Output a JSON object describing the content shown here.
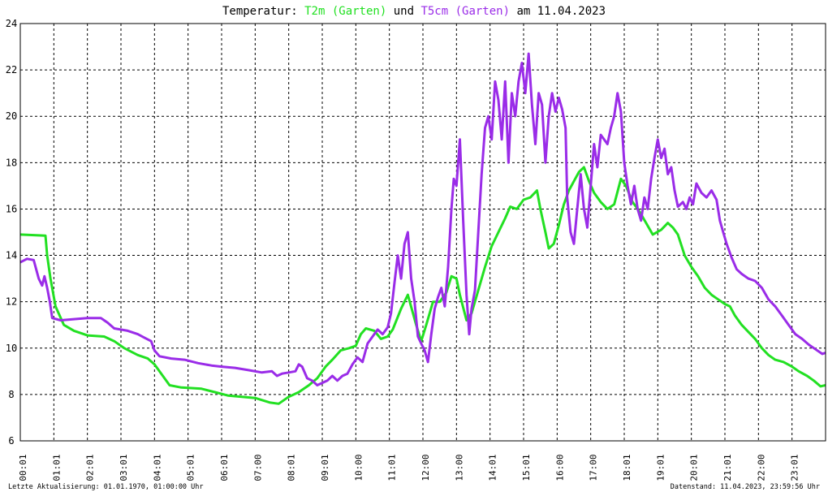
{
  "title": {
    "prefix": "Temperatur: ",
    "series1": "T2m (Garten)",
    "mid": " und ",
    "series2": "T5cm (Garten)",
    "suffix": " am 11.04.2023"
  },
  "footer": {
    "left": "Letzte Aktualisierung: 01.01.1970, 01:00:00 Uhr",
    "right": "Datenstand: 11.04.2023, 23:59:56 Uhr"
  },
  "colors": {
    "t2m": "#22e022",
    "t5cm": "#9a2ce8",
    "grid": "#000000",
    "text": "#000000"
  },
  "chart_data": {
    "type": "line",
    "title": "Temperatur: T2m (Garten) und T5cm (Garten) am 11.04.2023",
    "xlim": [
      0,
      24
    ],
    "ylim": [
      6,
      24
    ],
    "yticks": [
      6,
      8,
      10,
      12,
      14,
      16,
      18,
      20,
      22,
      24
    ],
    "xtick_labels": [
      "00:01",
      "01:01",
      "02:01",
      "03:01",
      "04:01",
      "05:01",
      "06:01",
      "07:00",
      "08:01",
      "09:01",
      "10:00",
      "11:01",
      "12:00",
      "13:00",
      "14:01",
      "15:01",
      "16:00",
      "17:00",
      "18:01",
      "19:01",
      "20:01",
      "21:01",
      "22:00",
      "23:01"
    ],
    "grid": true,
    "series": [
      {
        "name": "T2m (Garten)",
        "color": "#22e022",
        "points": [
          [
            0,
            14.9
          ],
          [
            0.75,
            14.85
          ],
          [
            0.8,
            14.0
          ],
          [
            0.9,
            13.0
          ],
          [
            1.05,
            11.8
          ],
          [
            1.3,
            11.0
          ],
          [
            1.6,
            10.75
          ],
          [
            2.0,
            10.55
          ],
          [
            2.5,
            10.5
          ],
          [
            2.8,
            10.3
          ],
          [
            3.1,
            10.0
          ],
          [
            3.5,
            9.7
          ],
          [
            3.8,
            9.55
          ],
          [
            4.0,
            9.3
          ],
          [
            4.2,
            8.9
          ],
          [
            4.45,
            8.4
          ],
          [
            4.8,
            8.3
          ],
          [
            5.4,
            8.25
          ],
          [
            5.8,
            8.1
          ],
          [
            6.2,
            7.95
          ],
          [
            6.6,
            7.9
          ],
          [
            7.0,
            7.85
          ],
          [
            7.45,
            7.65
          ],
          [
            7.7,
            7.6
          ],
          [
            8.0,
            7.9
          ],
          [
            8.3,
            8.1
          ],
          [
            8.6,
            8.4
          ],
          [
            8.85,
            8.7
          ],
          [
            9.1,
            9.2
          ],
          [
            9.3,
            9.5
          ],
          [
            9.55,
            9.9
          ],
          [
            9.8,
            10.0
          ],
          [
            10.0,
            10.1
          ],
          [
            10.15,
            10.6
          ],
          [
            10.3,
            10.85
          ],
          [
            10.55,
            10.75
          ],
          [
            10.75,
            10.4
          ],
          [
            10.95,
            10.5
          ],
          [
            11.1,
            10.8
          ],
          [
            11.35,
            11.7
          ],
          [
            11.55,
            12.3
          ],
          [
            11.8,
            11.0
          ],
          [
            11.95,
            10.3
          ],
          [
            12.1,
            11.0
          ],
          [
            12.3,
            12.0
          ],
          [
            12.5,
            12.0
          ],
          [
            12.7,
            12.4
          ],
          [
            12.85,
            13.1
          ],
          [
            13.0,
            13.0
          ],
          [
            13.1,
            12.3
          ],
          [
            13.3,
            11.2
          ],
          [
            13.45,
            11.5
          ],
          [
            13.65,
            12.5
          ],
          [
            13.85,
            13.5
          ],
          [
            14.05,
            14.4
          ],
          [
            14.25,
            15.0
          ],
          [
            14.45,
            15.6
          ],
          [
            14.6,
            16.1
          ],
          [
            14.8,
            16.0
          ],
          [
            15.0,
            16.4
          ],
          [
            15.2,
            16.5
          ],
          [
            15.4,
            16.8
          ],
          [
            15.5,
            16.0
          ],
          [
            15.65,
            15.0
          ],
          [
            15.75,
            14.3
          ],
          [
            15.9,
            14.5
          ],
          [
            16.05,
            15.3
          ],
          [
            16.2,
            16.2
          ],
          [
            16.35,
            16.8
          ],
          [
            16.5,
            17.2
          ],
          [
            16.65,
            17.6
          ],
          [
            16.8,
            17.8
          ],
          [
            16.95,
            17.2
          ],
          [
            17.1,
            16.7
          ],
          [
            17.3,
            16.3
          ],
          [
            17.5,
            16.0
          ],
          [
            17.7,
            16.2
          ],
          [
            17.9,
            17.3
          ],
          [
            18.05,
            17.0
          ],
          [
            18.25,
            16.3
          ],
          [
            18.45,
            15.9
          ],
          [
            18.65,
            15.4
          ],
          [
            18.85,
            14.9
          ],
          [
            19.1,
            15.1
          ],
          [
            19.3,
            15.4
          ],
          [
            19.45,
            15.2
          ],
          [
            19.6,
            14.9
          ],
          [
            19.8,
            14.0
          ],
          [
            20.0,
            13.5
          ],
          [
            20.2,
            13.1
          ],
          [
            20.4,
            12.6
          ],
          [
            20.6,
            12.3
          ],
          [
            20.8,
            12.1
          ],
          [
            21.0,
            11.9
          ],
          [
            21.15,
            11.8
          ],
          [
            21.3,
            11.4
          ],
          [
            21.5,
            11.0
          ],
          [
            21.7,
            10.7
          ],
          [
            21.9,
            10.4
          ],
          [
            22.1,
            10.0
          ],
          [
            22.3,
            9.7
          ],
          [
            22.5,
            9.5
          ],
          [
            22.75,
            9.4
          ],
          [
            23.0,
            9.2
          ],
          [
            23.2,
            9.0
          ],
          [
            23.45,
            8.8
          ],
          [
            23.65,
            8.6
          ],
          [
            23.85,
            8.35
          ],
          [
            24.0,
            8.4
          ]
        ]
      },
      {
        "name": "T5cm (Garten)",
        "color": "#9a2ce8",
        "points": [
          [
            0,
            13.7
          ],
          [
            0.2,
            13.85
          ],
          [
            0.4,
            13.8
          ],
          [
            0.55,
            13.0
          ],
          [
            0.65,
            12.7
          ],
          [
            0.72,
            13.1
          ],
          [
            0.8,
            12.6
          ],
          [
            0.88,
            12.0
          ],
          [
            0.95,
            11.3
          ],
          [
            1.2,
            11.2
          ],
          [
            1.6,
            11.25
          ],
          [
            2.0,
            11.3
          ],
          [
            2.4,
            11.3
          ],
          [
            2.6,
            11.1
          ],
          [
            2.8,
            10.85
          ],
          [
            3.2,
            10.75
          ],
          [
            3.5,
            10.6
          ],
          [
            3.7,
            10.45
          ],
          [
            3.9,
            10.3
          ],
          [
            4.0,
            9.9
          ],
          [
            4.15,
            9.65
          ],
          [
            4.5,
            9.55
          ],
          [
            4.9,
            9.5
          ],
          [
            5.3,
            9.35
          ],
          [
            5.7,
            9.25
          ],
          [
            6.0,
            9.2
          ],
          [
            6.4,
            9.15
          ],
          [
            6.8,
            9.05
          ],
          [
            7.2,
            8.95
          ],
          [
            7.5,
            9.0
          ],
          [
            7.65,
            8.8
          ],
          [
            7.8,
            8.9
          ],
          [
            8.0,
            8.95
          ],
          [
            8.2,
            9.0
          ],
          [
            8.3,
            9.3
          ],
          [
            8.4,
            9.2
          ],
          [
            8.55,
            8.7
          ],
          [
            8.7,
            8.6
          ],
          [
            8.85,
            8.4
          ],
          [
            9.0,
            8.5
          ],
          [
            9.15,
            8.6
          ],
          [
            9.3,
            8.8
          ],
          [
            9.45,
            8.6
          ],
          [
            9.6,
            8.8
          ],
          [
            9.75,
            8.9
          ],
          [
            9.9,
            9.3
          ],
          [
            10.05,
            9.6
          ],
          [
            10.2,
            9.4
          ],
          [
            10.35,
            10.2
          ],
          [
            10.5,
            10.5
          ],
          [
            10.65,
            10.8
          ],
          [
            10.8,
            10.6
          ],
          [
            10.95,
            10.9
          ],
          [
            11.05,
            11.5
          ],
          [
            11.15,
            12.8
          ],
          [
            11.25,
            14.0
          ],
          [
            11.35,
            13.0
          ],
          [
            11.45,
            14.5
          ],
          [
            11.55,
            15.0
          ],
          [
            11.65,
            13.0
          ],
          [
            11.75,
            12.0
          ],
          [
            11.85,
            10.5
          ],
          [
            11.95,
            10.2
          ],
          [
            12.05,
            9.9
          ],
          [
            12.15,
            9.4
          ],
          [
            12.25,
            10.6
          ],
          [
            12.35,
            11.7
          ],
          [
            12.45,
            12.2
          ],
          [
            12.55,
            12.6
          ],
          [
            12.65,
            11.8
          ],
          [
            12.75,
            13.5
          ],
          [
            12.85,
            16.0
          ],
          [
            12.92,
            17.3
          ],
          [
            13.0,
            17.0
          ],
          [
            13.1,
            19.0
          ],
          [
            13.2,
            15.5
          ],
          [
            13.3,
            12.3
          ],
          [
            13.38,
            10.6
          ],
          [
            13.45,
            11.7
          ],
          [
            13.55,
            12.5
          ],
          [
            13.65,
            15.0
          ],
          [
            13.75,
            17.5
          ],
          [
            13.85,
            19.5
          ],
          [
            13.95,
            20.0
          ],
          [
            14.05,
            19.0
          ],
          [
            14.15,
            21.5
          ],
          [
            14.25,
            20.7
          ],
          [
            14.35,
            19.0
          ],
          [
            14.45,
            21.5
          ],
          [
            14.55,
            18.0
          ],
          [
            14.65,
            21.0
          ],
          [
            14.75,
            20.0
          ],
          [
            14.85,
            21.5
          ],
          [
            14.95,
            22.3
          ],
          [
            15.05,
            21.0
          ],
          [
            15.15,
            22.7
          ],
          [
            15.25,
            20.5
          ],
          [
            15.35,
            18.8
          ],
          [
            15.45,
            21.0
          ],
          [
            15.55,
            20.5
          ],
          [
            15.65,
            18.0
          ],
          [
            15.75,
            20.0
          ],
          [
            15.85,
            21.0
          ],
          [
            15.95,
            20.2
          ],
          [
            16.05,
            20.8
          ],
          [
            16.15,
            20.3
          ],
          [
            16.25,
            19.5
          ],
          [
            16.3,
            16.5
          ],
          [
            16.4,
            15.0
          ],
          [
            16.5,
            14.5
          ],
          [
            16.6,
            16.0
          ],
          [
            16.7,
            17.5
          ],
          [
            16.8,
            16.0
          ],
          [
            16.9,
            15.2
          ],
          [
            17.0,
            17.0
          ],
          [
            17.1,
            18.8
          ],
          [
            17.2,
            17.8
          ],
          [
            17.3,
            19.2
          ],
          [
            17.4,
            19.0
          ],
          [
            17.5,
            18.8
          ],
          [
            17.6,
            19.5
          ],
          [
            17.7,
            20.0
          ],
          [
            17.8,
            21.0
          ],
          [
            17.9,
            20.2
          ],
          [
            18.0,
            18.0
          ],
          [
            18.1,
            17.0
          ],
          [
            18.2,
            16.2
          ],
          [
            18.3,
            17.0
          ],
          [
            18.4,
            16.0
          ],
          [
            18.5,
            15.5
          ],
          [
            18.6,
            16.5
          ],
          [
            18.7,
            16.0
          ],
          [
            18.8,
            17.3
          ],
          [
            18.9,
            18.2
          ],
          [
            19.0,
            19.0
          ],
          [
            19.1,
            18.2
          ],
          [
            19.2,
            18.6
          ],
          [
            19.3,
            17.5
          ],
          [
            19.4,
            17.8
          ],
          [
            19.5,
            16.8
          ],
          [
            19.6,
            16.1
          ],
          [
            19.75,
            16.3
          ],
          [
            19.85,
            16.0
          ],
          [
            19.95,
            16.5
          ],
          [
            20.05,
            16.2
          ],
          [
            20.15,
            17.1
          ],
          [
            20.3,
            16.7
          ],
          [
            20.45,
            16.5
          ],
          [
            20.6,
            16.8
          ],
          [
            20.75,
            16.4
          ],
          [
            20.85,
            15.5
          ],
          [
            20.95,
            15.0
          ],
          [
            21.05,
            14.5
          ],
          [
            21.2,
            13.9
          ],
          [
            21.35,
            13.4
          ],
          [
            21.5,
            13.2
          ],
          [
            21.7,
            13.0
          ],
          [
            21.9,
            12.9
          ],
          [
            22.1,
            12.6
          ],
          [
            22.3,
            12.1
          ],
          [
            22.5,
            11.8
          ],
          [
            22.7,
            11.4
          ],
          [
            22.9,
            11.0
          ],
          [
            23.1,
            10.6
          ],
          [
            23.3,
            10.4
          ],
          [
            23.5,
            10.15
          ],
          [
            23.7,
            9.95
          ],
          [
            23.9,
            9.75
          ],
          [
            24.0,
            9.8
          ]
        ]
      }
    ]
  }
}
